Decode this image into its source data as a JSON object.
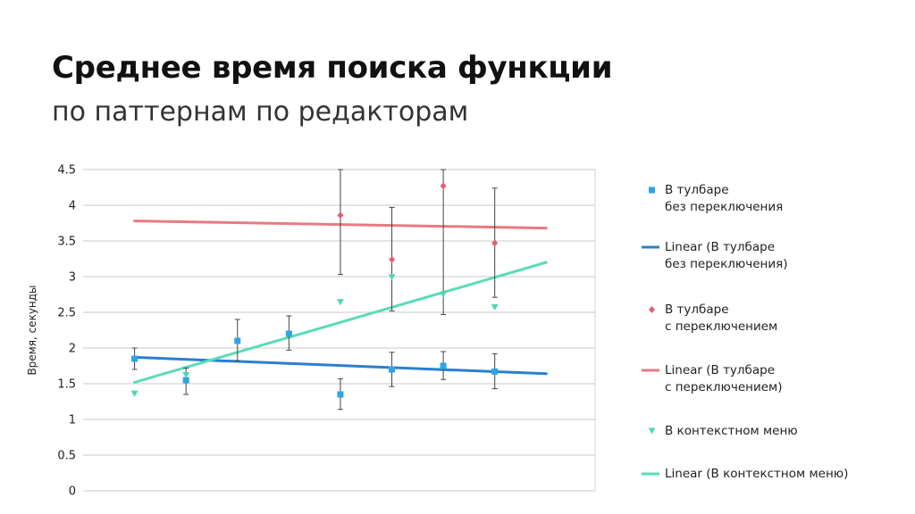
{
  "header": {
    "title": "Среднее время поиска функции",
    "subtitle": "по паттернам по редакторам"
  },
  "chart_data": {
    "type": "scatter",
    "ylabel": "Время, секунды",
    "xlabel": "",
    "ylim": [
      0,
      4.5
    ],
    "yticks": [
      0,
      0.5,
      1,
      1.5,
      2,
      2.5,
      3,
      3.5,
      4,
      4.5
    ],
    "yticklabels": [
      "0",
      "0.5",
      "1",
      "1.5",
      "2",
      "2.5",
      "3",
      "3.5",
      "4",
      "4.5"
    ],
    "grid": true,
    "legend_position": "right",
    "series": [
      {
        "name": "В тулбаре\nбез переключения",
        "marker": "square",
        "color": "#2fa3e6",
        "points": [
          {
            "x": 1,
            "y": 1.85,
            "err_low": 1.7,
            "err_high": 2.0
          },
          {
            "x": 2,
            "y": 1.55,
            "err_low": 1.35,
            "err_high": 1.72
          },
          {
            "x": 3,
            "y": 2.1,
            "err_low": 1.82,
            "err_high": 2.4
          },
          {
            "x": 4,
            "y": 2.2,
            "err_low": 1.97,
            "err_high": 2.45
          },
          {
            "x": 5,
            "y": 1.35,
            "err_low": 1.14,
            "err_high": 1.57
          },
          {
            "x": 6,
            "y": 1.7,
            "err_low": 1.46,
            "err_high": 1.94
          },
          {
            "x": 7,
            "y": 1.75,
            "err_low": 1.56,
            "err_high": 1.95
          },
          {
            "x": 8,
            "y": 1.67,
            "err_low": 1.43,
            "err_high": 1.92
          }
        ]
      },
      {
        "name": "Linear (В тулбаре\nбез переключения)",
        "type": "line",
        "color": "#2b7fcf",
        "x": [
          1,
          9
        ],
        "y": [
          1.87,
          1.64
        ]
      },
      {
        "name": "В тулбаре\nс переключением",
        "marker": "diamond",
        "color": "#e0607a",
        "points": [
          {
            "x": 5,
            "y": 3.86,
            "err_low": 3.03,
            "err_high": 4.5
          },
          {
            "x": 6,
            "y": 3.24,
            "err_low": 2.52,
            "err_high": 3.97
          },
          {
            "x": 7,
            "y": 4.27,
            "err_low": 2.47,
            "err_high": 4.5
          },
          {
            "x": 8,
            "y": 3.47,
            "err_low": 2.71,
            "err_high": 4.24
          }
        ]
      },
      {
        "name": "Linear (В тулбаре\nс переключением)",
        "type": "line",
        "color": "#e87a83",
        "x": [
          1,
          9
        ],
        "y": [
          3.78,
          3.68
        ]
      },
      {
        "name": "В контекстном меню",
        "marker": "triangle-down",
        "color": "#4fd6b3",
        "points": [
          {
            "x": 1,
            "y": 1.36
          },
          {
            "x": 2,
            "y": 1.62
          },
          {
            "x": 5,
            "y": 2.64
          },
          {
            "x": 6,
            "y": 2.99
          },
          {
            "x": 7,
            "y": 2.75
          },
          {
            "x": 8,
            "y": 2.57
          }
        ]
      },
      {
        "name": "Linear (В контекстном меню)",
        "type": "line",
        "color": "#5adcb8",
        "x": [
          1,
          9
        ],
        "y": [
          1.52,
          3.2
        ]
      }
    ]
  }
}
